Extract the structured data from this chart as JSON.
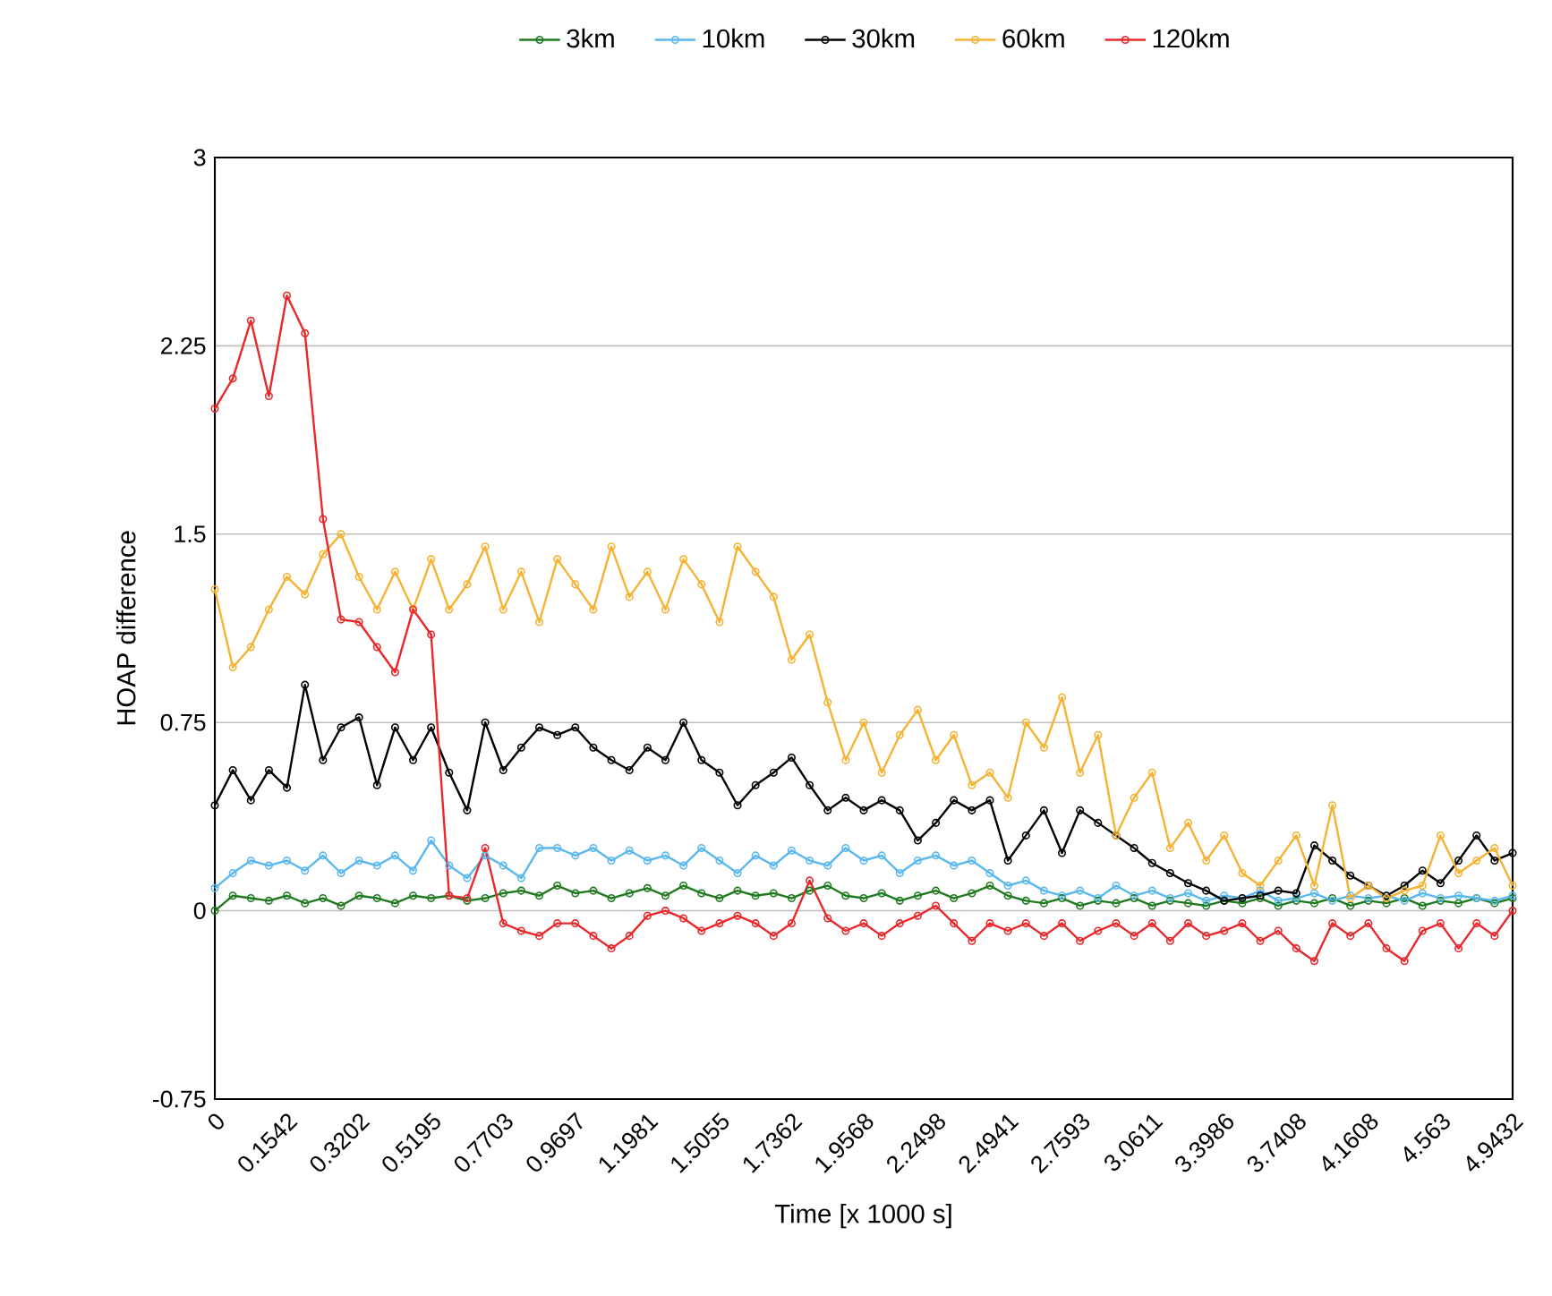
{
  "chart_data": {
    "type": "line",
    "xlabel": "Time [x 1000 s]",
    "ylabel": "HOAP difference",
    "categories": [
      "0",
      null,
      null,
      null,
      "0.1542",
      null,
      null,
      null,
      "0.3202",
      null,
      null,
      null,
      "0.5195",
      null,
      null,
      null,
      "0.7703",
      null,
      null,
      null,
      "0.9697",
      null,
      null,
      null,
      "1.1981",
      null,
      null,
      null,
      "1.5055",
      null,
      null,
      null,
      "1.7362",
      null,
      null,
      null,
      "1.9568",
      null,
      null,
      null,
      "2.2498",
      null,
      null,
      null,
      "2.4941",
      null,
      null,
      null,
      "2.7593",
      null,
      null,
      null,
      "3.0611",
      null,
      null,
      null,
      "3.3986",
      null,
      null,
      null,
      "3.7408",
      null,
      null,
      null,
      "4.1608",
      null,
      null,
      null,
      "4.563",
      null,
      null,
      null,
      "4.9432"
    ],
    "series": [
      {
        "name": "3km",
        "color": "#1f7a1f",
        "values": [
          0.0,
          0.06,
          0.05,
          0.04,
          0.06,
          0.03,
          0.05,
          0.02,
          0.06,
          0.05,
          0.03,
          0.06,
          0.05,
          0.06,
          0.04,
          0.05,
          0.07,
          0.08,
          0.06,
          0.1,
          0.07,
          0.08,
          0.05,
          0.07,
          0.09,
          0.06,
          0.1,
          0.07,
          0.05,
          0.08,
          0.06,
          0.07,
          0.05,
          0.08,
          0.1,
          0.06,
          0.05,
          0.07,
          0.04,
          0.06,
          0.08,
          0.05,
          0.07,
          0.1,
          0.06,
          0.04,
          0.03,
          0.05,
          0.02,
          0.04,
          0.03,
          0.05,
          0.02,
          0.04,
          0.03,
          0.02,
          0.04,
          0.03,
          0.05,
          0.02,
          0.04,
          0.03,
          0.05,
          0.02,
          0.04,
          0.03,
          0.05,
          0.02,
          0.04,
          0.03,
          0.05,
          0.03,
          0.05
        ]
      },
      {
        "name": "10km",
        "color": "#5bb8ee",
        "values": [
          0.09,
          0.15,
          0.2,
          0.18,
          0.2,
          0.16,
          0.22,
          0.15,
          0.2,
          0.18,
          0.22,
          0.16,
          0.28,
          0.18,
          0.13,
          0.22,
          0.18,
          0.13,
          0.25,
          0.25,
          0.22,
          0.25,
          0.2,
          0.24,
          0.2,
          0.22,
          0.18,
          0.25,
          0.2,
          0.15,
          0.22,
          0.18,
          0.24,
          0.2,
          0.18,
          0.25,
          0.2,
          0.22,
          0.15,
          0.2,
          0.22,
          0.18,
          0.2,
          0.15,
          0.1,
          0.12,
          0.08,
          0.06,
          0.08,
          0.05,
          0.1,
          0.06,
          0.08,
          0.05,
          0.07,
          0.04,
          0.06,
          0.05,
          0.08,
          0.04,
          0.05,
          0.07,
          0.04,
          0.06,
          0.05,
          0.06,
          0.04,
          0.07,
          0.05,
          0.06,
          0.05,
          0.04,
          0.06
        ]
      },
      {
        "name": "30km",
        "color": "#000000",
        "values": [
          0.42,
          0.56,
          0.44,
          0.56,
          0.49,
          0.9,
          0.6,
          0.73,
          0.77,
          0.5,
          0.73,
          0.6,
          0.73,
          0.55,
          0.4,
          0.75,
          0.56,
          0.65,
          0.73,
          0.7,
          0.73,
          0.65,
          0.6,
          0.56,
          0.65,
          0.6,
          0.75,
          0.6,
          0.55,
          0.42,
          0.5,
          0.55,
          0.61,
          0.5,
          0.4,
          0.45,
          0.4,
          0.44,
          0.4,
          0.28,
          0.35,
          0.44,
          0.4,
          0.44,
          0.2,
          0.3,
          0.4,
          0.23,
          0.4,
          0.35,
          0.3,
          0.25,
          0.19,
          0.15,
          0.11,
          0.08,
          0.04,
          0.05,
          0.06,
          0.08,
          0.07,
          0.26,
          0.2,
          0.14,
          0.1,
          0.06,
          0.1,
          0.16,
          0.11,
          0.2,
          0.3,
          0.2,
          0.23
        ]
      },
      {
        "name": "60km",
        "color": "#f5b335",
        "values": [
          1.28,
          0.97,
          1.05,
          1.2,
          1.33,
          1.26,
          1.42,
          1.5,
          1.33,
          1.2,
          1.35,
          1.2,
          1.4,
          1.2,
          1.3,
          1.45,
          1.2,
          1.35,
          1.15,
          1.4,
          1.3,
          1.2,
          1.45,
          1.25,
          1.35,
          1.2,
          1.4,
          1.3,
          1.15,
          1.45,
          1.35,
          1.25,
          1.0,
          1.1,
          0.83,
          0.6,
          0.75,
          0.55,
          0.7,
          0.8,
          0.6,
          0.7,
          0.5,
          0.55,
          0.45,
          0.75,
          0.65,
          0.85,
          0.55,
          0.7,
          0.3,
          0.45,
          0.55,
          0.25,
          0.35,
          0.2,
          0.3,
          0.15,
          0.1,
          0.2,
          0.3,
          0.1,
          0.42,
          0.05,
          0.1,
          0.05,
          0.08,
          0.1,
          0.3,
          0.15,
          0.2,
          0.25,
          0.1
        ]
      },
      {
        "name": "120km",
        "color": "#e8282b",
        "values": [
          2.0,
          2.12,
          2.35,
          2.05,
          2.45,
          2.3,
          1.56,
          1.16,
          1.15,
          1.05,
          0.95,
          1.2,
          1.1,
          0.06,
          0.05,
          0.25,
          -0.05,
          -0.08,
          -0.1,
          -0.05,
          -0.05,
          -0.1,
          -0.15,
          -0.1,
          -0.02,
          0.0,
          -0.03,
          -0.08,
          -0.05,
          -0.02,
          -0.05,
          -0.1,
          -0.05,
          0.12,
          -0.03,
          -0.08,
          -0.05,
          -0.1,
          -0.05,
          -0.02,
          0.02,
          -0.05,
          -0.12,
          -0.05,
          -0.08,
          -0.05,
          -0.1,
          -0.05,
          -0.12,
          -0.08,
          -0.05,
          -0.1,
          -0.05,
          -0.12,
          -0.05,
          -0.1,
          -0.08,
          -0.05,
          -0.12,
          -0.08,
          -0.15,
          -0.2,
          -0.05,
          -0.1,
          -0.05,
          -0.15,
          -0.2,
          -0.08,
          -0.05,
          -0.15,
          -0.05,
          -0.1,
          0.0
        ]
      }
    ],
    "ylim": [
      -0.75,
      3
    ],
    "yticks": [
      -0.75,
      0,
      0.75,
      1.5,
      2.25,
      3
    ],
    "grid": "y",
    "legend": "top",
    "marker": "circle",
    "line_style": "solid"
  }
}
